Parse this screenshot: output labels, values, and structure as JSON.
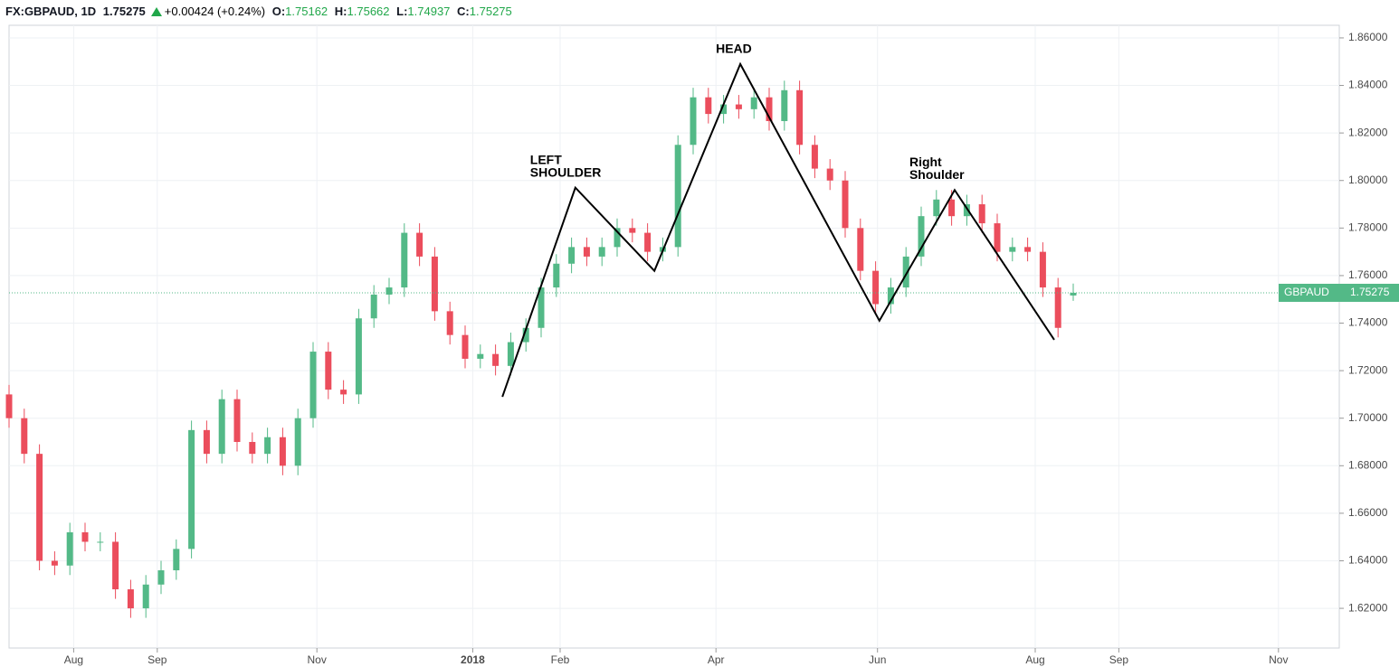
{
  "chart_data": {
    "type": "candlestick",
    "symbol": "FX:GBPAUD, 1D",
    "change": "+0.00424 (+0.24%)",
    "ohlc_labels": [
      "O:",
      "H:",
      "L:",
      "C:"
    ],
    "name": "GBPAUD",
    "up_color": "#53b987",
    "down_color": "#eb4d5c",
    "x": [
      0,
      4,
      8,
      12,
      16,
      20,
      24,
      28,
      32,
      36,
      40,
      44,
      48,
      52,
      56,
      60,
      64,
      68,
      72,
      76,
      80,
      84,
      88,
      92,
      96,
      100,
      104,
      108,
      112,
      116,
      120,
      124,
      128,
      132,
      136,
      140,
      144,
      148,
      152,
      156,
      160,
      164,
      168,
      172,
      176,
      180,
      184,
      188,
      192,
      196,
      200,
      204,
      208,
      212,
      216,
      220,
      224,
      228,
      232,
      236,
      240,
      244,
      248,
      252,
      256,
      260,
      264,
      268,
      272,
      276,
      280
    ],
    "open": [
      1.71,
      1.7,
      1.685,
      1.64,
      1.638,
      1.652,
      1.648,
      1.648,
      1.628,
      1.62,
      1.63,
      1.636,
      1.645,
      1.695,
      1.685,
      1.708,
      1.69,
      1.685,
      1.692,
      1.68,
      1.7,
      1.728,
      1.712,
      1.71,
      1.742,
      1.752,
      1.755,
      1.778,
      1.768,
      1.745,
      1.735,
      1.725,
      1.727,
      1.722,
      1.732,
      1.738,
      1.755,
      1.765,
      1.772,
      1.768,
      1.772,
      1.78,
      1.778,
      1.77,
      1.772,
      1.815,
      1.835,
      1.828,
      1.832,
      1.83,
      1.835,
      1.825,
      1.838,
      1.815,
      1.805,
      1.8,
      1.78,
      1.762,
      1.748,
      1.755,
      1.768,
      1.785,
      1.792,
      1.785,
      1.79,
      1.782,
      1.77,
      1.772,
      1.77,
      1.755,
      1.75162
    ],
    "high": [
      1.714,
      1.704,
      1.689,
      1.644,
      1.656,
      1.656,
      1.652,
      1.652,
      1.632,
      1.634,
      1.64,
      1.649,
      1.699,
      1.699,
      1.712,
      1.712,
      1.694,
      1.696,
      1.696,
      1.704,
      1.732,
      1.732,
      1.716,
      1.746,
      1.756,
      1.759,
      1.782,
      1.782,
      1.772,
      1.749,
      1.739,
      1.731,
      1.731,
      1.736,
      1.742,
      1.759,
      1.769,
      1.776,
      1.776,
      1.776,
      1.784,
      1.784,
      1.782,
      1.776,
      1.819,
      1.839,
      1.839,
      1.836,
      1.836,
      1.839,
      1.839,
      1.842,
      1.842,
      1.819,
      1.809,
      1.804,
      1.784,
      1.766,
      1.759,
      1.772,
      1.789,
      1.796,
      1.796,
      1.794,
      1.794,
      1.786,
      1.776,
      1.776,
      1.774,
      1.759,
      1.75662
    ],
    "low": [
      1.696,
      1.681,
      1.636,
      1.634,
      1.634,
      1.644,
      1.644,
      1.624,
      1.616,
      1.616,
      1.626,
      1.632,
      1.641,
      1.681,
      1.681,
      1.686,
      1.681,
      1.681,
      1.676,
      1.676,
      1.696,
      1.708,
      1.706,
      1.706,
      1.738,
      1.748,
      1.751,
      1.764,
      1.741,
      1.731,
      1.721,
      1.721,
      1.718,
      1.718,
      1.728,
      1.734,
      1.751,
      1.761,
      1.764,
      1.764,
      1.768,
      1.774,
      1.766,
      1.766,
      1.768,
      1.811,
      1.824,
      1.824,
      1.826,
      1.826,
      1.821,
      1.821,
      1.811,
      1.801,
      1.796,
      1.776,
      1.758,
      1.744,
      1.744,
      1.751,
      1.764,
      1.781,
      1.781,
      1.781,
      1.778,
      1.766,
      1.766,
      1.766,
      1.751,
      1.734,
      1.74937
    ],
    "close": [
      1.7,
      1.685,
      1.64,
      1.638,
      1.652,
      1.648,
      1.648,
      1.628,
      1.62,
      1.63,
      1.636,
      1.645,
      1.695,
      1.685,
      1.708,
      1.69,
      1.685,
      1.692,
      1.68,
      1.7,
      1.728,
      1.712,
      1.71,
      1.742,
      1.752,
      1.755,
      1.778,
      1.768,
      1.745,
      1.735,
      1.725,
      1.727,
      1.722,
      1.732,
      1.738,
      1.755,
      1.765,
      1.772,
      1.768,
      1.772,
      1.78,
      1.778,
      1.77,
      1.772,
      1.815,
      1.835,
      1.828,
      1.832,
      1.83,
      1.835,
      1.825,
      1.838,
      1.815,
      1.805,
      1.8,
      1.78,
      1.762,
      1.748,
      1.755,
      1.768,
      1.785,
      1.792,
      1.785,
      1.79,
      1.782,
      1.77,
      1.772,
      1.77,
      1.755,
      1.738,
      1.75275
    ],
    "xlim": [
      0,
      350
    ],
    "ylim": [
      1.6033,
      1.8653
    ],
    "xticks": [
      {
        "value": 17,
        "label": "Aug"
      },
      {
        "value": 39,
        "label": "Sep"
      },
      {
        "value": 81,
        "label": "Nov"
      },
      {
        "value": 122,
        "label": "2018"
      },
      {
        "value": 145,
        "label": "Feb"
      },
      {
        "value": 186,
        "label": "Apr"
      },
      {
        "value": 228.5,
        "label": "Jun"
      },
      {
        "value": 270,
        "label": "Aug"
      },
      {
        "value": 292,
        "label": "Sep"
      },
      {
        "value": 334,
        "label": "Nov"
      }
    ],
    "yticks": [
      {
        "value": 1.62,
        "label": "1.62000"
      },
      {
        "value": 1.64,
        "label": "1.64000"
      },
      {
        "value": 1.66,
        "label": "1.66000"
      },
      {
        "value": 1.68,
        "label": "1.68000"
      },
      {
        "value": 1.7,
        "label": "1.70000"
      },
      {
        "value": 1.72,
        "label": "1.72000"
      },
      {
        "value": 1.74,
        "label": "1.74000"
      },
      {
        "value": 1.76,
        "label": "1.76000"
      },
      {
        "value": 1.78,
        "label": "1.78000"
      },
      {
        "value": 1.8,
        "label": "1.80000"
      },
      {
        "value": 1.82,
        "label": "1.82000"
      },
      {
        "value": 1.84,
        "label": "1.84000"
      },
      {
        "value": 1.86,
        "label": "1.86000"
      }
    ],
    "grid": true,
    "pattern": {
      "x": [
        129.8,
        149,
        169.8,
        192.4,
        229,
        248.8,
        275
      ],
      "y": [
        1.709,
        1.797,
        1.762,
        1.849,
        1.741,
        1.796,
        1.733
      ]
    },
    "pattern_labels": [
      {
        "point": 1,
        "lines": [
          "LEFT",
          "SHOULDER"
        ]
      },
      {
        "point": 3,
        "lines": [
          "HEAD"
        ]
      },
      {
        "point": 5,
        "lines": [
          "Right",
          "Shoulder"
        ]
      }
    ]
  }
}
